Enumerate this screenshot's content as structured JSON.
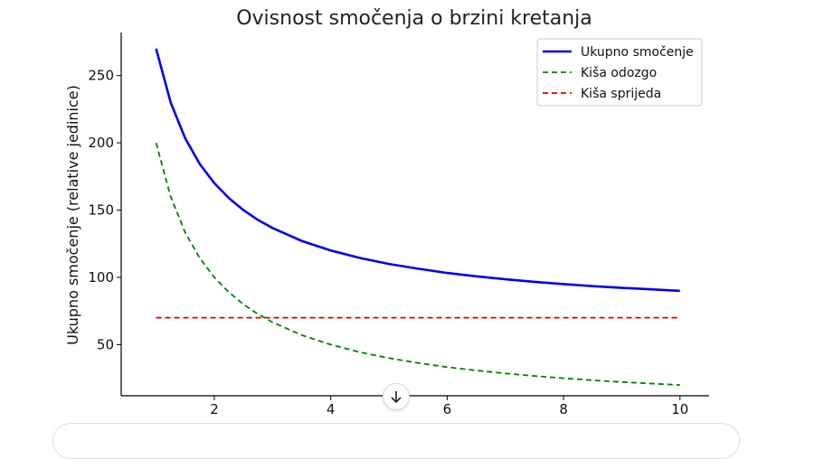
{
  "chart_data": {
    "type": "line",
    "title": "Ovisnost smočenja o brzini kretanja",
    "xlabel": "",
    "ylabel": "Ukupno smočenje (relative jedinice)",
    "xlim": [
      0.4,
      10.5
    ],
    "ylim": [
      12,
      282
    ],
    "xticks": [
      2,
      4,
      6,
      8,
      10
    ],
    "yticks": [
      50,
      100,
      150,
      200,
      250
    ],
    "x": [
      1,
      1.25,
      1.5,
      1.75,
      2,
      2.25,
      2.5,
      2.75,
      3,
      3.5,
      4,
      4.5,
      5,
      5.5,
      6,
      6.5,
      7,
      7.5,
      8,
      8.5,
      9,
      9.5,
      10
    ],
    "series": [
      {
        "name": "Ukupno smočenje",
        "color": "#0000ee",
        "style": "solid",
        "values": [
          270,
          230,
          203.3,
          184.3,
          170,
          158.9,
          150,
          142.7,
          136.7,
          127.1,
          120,
          114.4,
          110,
          106.4,
          103.3,
          100.8,
          98.6,
          96.7,
          95,
          93.5,
          92.2,
          91.1,
          90
        ]
      },
      {
        "name": "Kiša odozgo",
        "color": "#008000",
        "style": "dashed",
        "values": [
          200,
          160,
          133.3,
          114.3,
          100,
          88.9,
          80,
          72.7,
          66.7,
          57.1,
          50,
          44.4,
          40,
          36.4,
          33.3,
          30.8,
          28.6,
          26.7,
          25,
          23.5,
          22.2,
          21.1,
          20
        ]
      },
      {
        "name": "Kiša sprijeda",
        "color": "#dd0000",
        "style": "dashed",
        "values": [
          70,
          70,
          70,
          70,
          70,
          70,
          70,
          70,
          70,
          70,
          70,
          70,
          70,
          70,
          70,
          70,
          70,
          70,
          70,
          70,
          70,
          70,
          70
        ]
      }
    ],
    "legend_position": "top-right",
    "grid": false
  },
  "ui": {
    "scroll_icon": "arrow-down-icon"
  }
}
